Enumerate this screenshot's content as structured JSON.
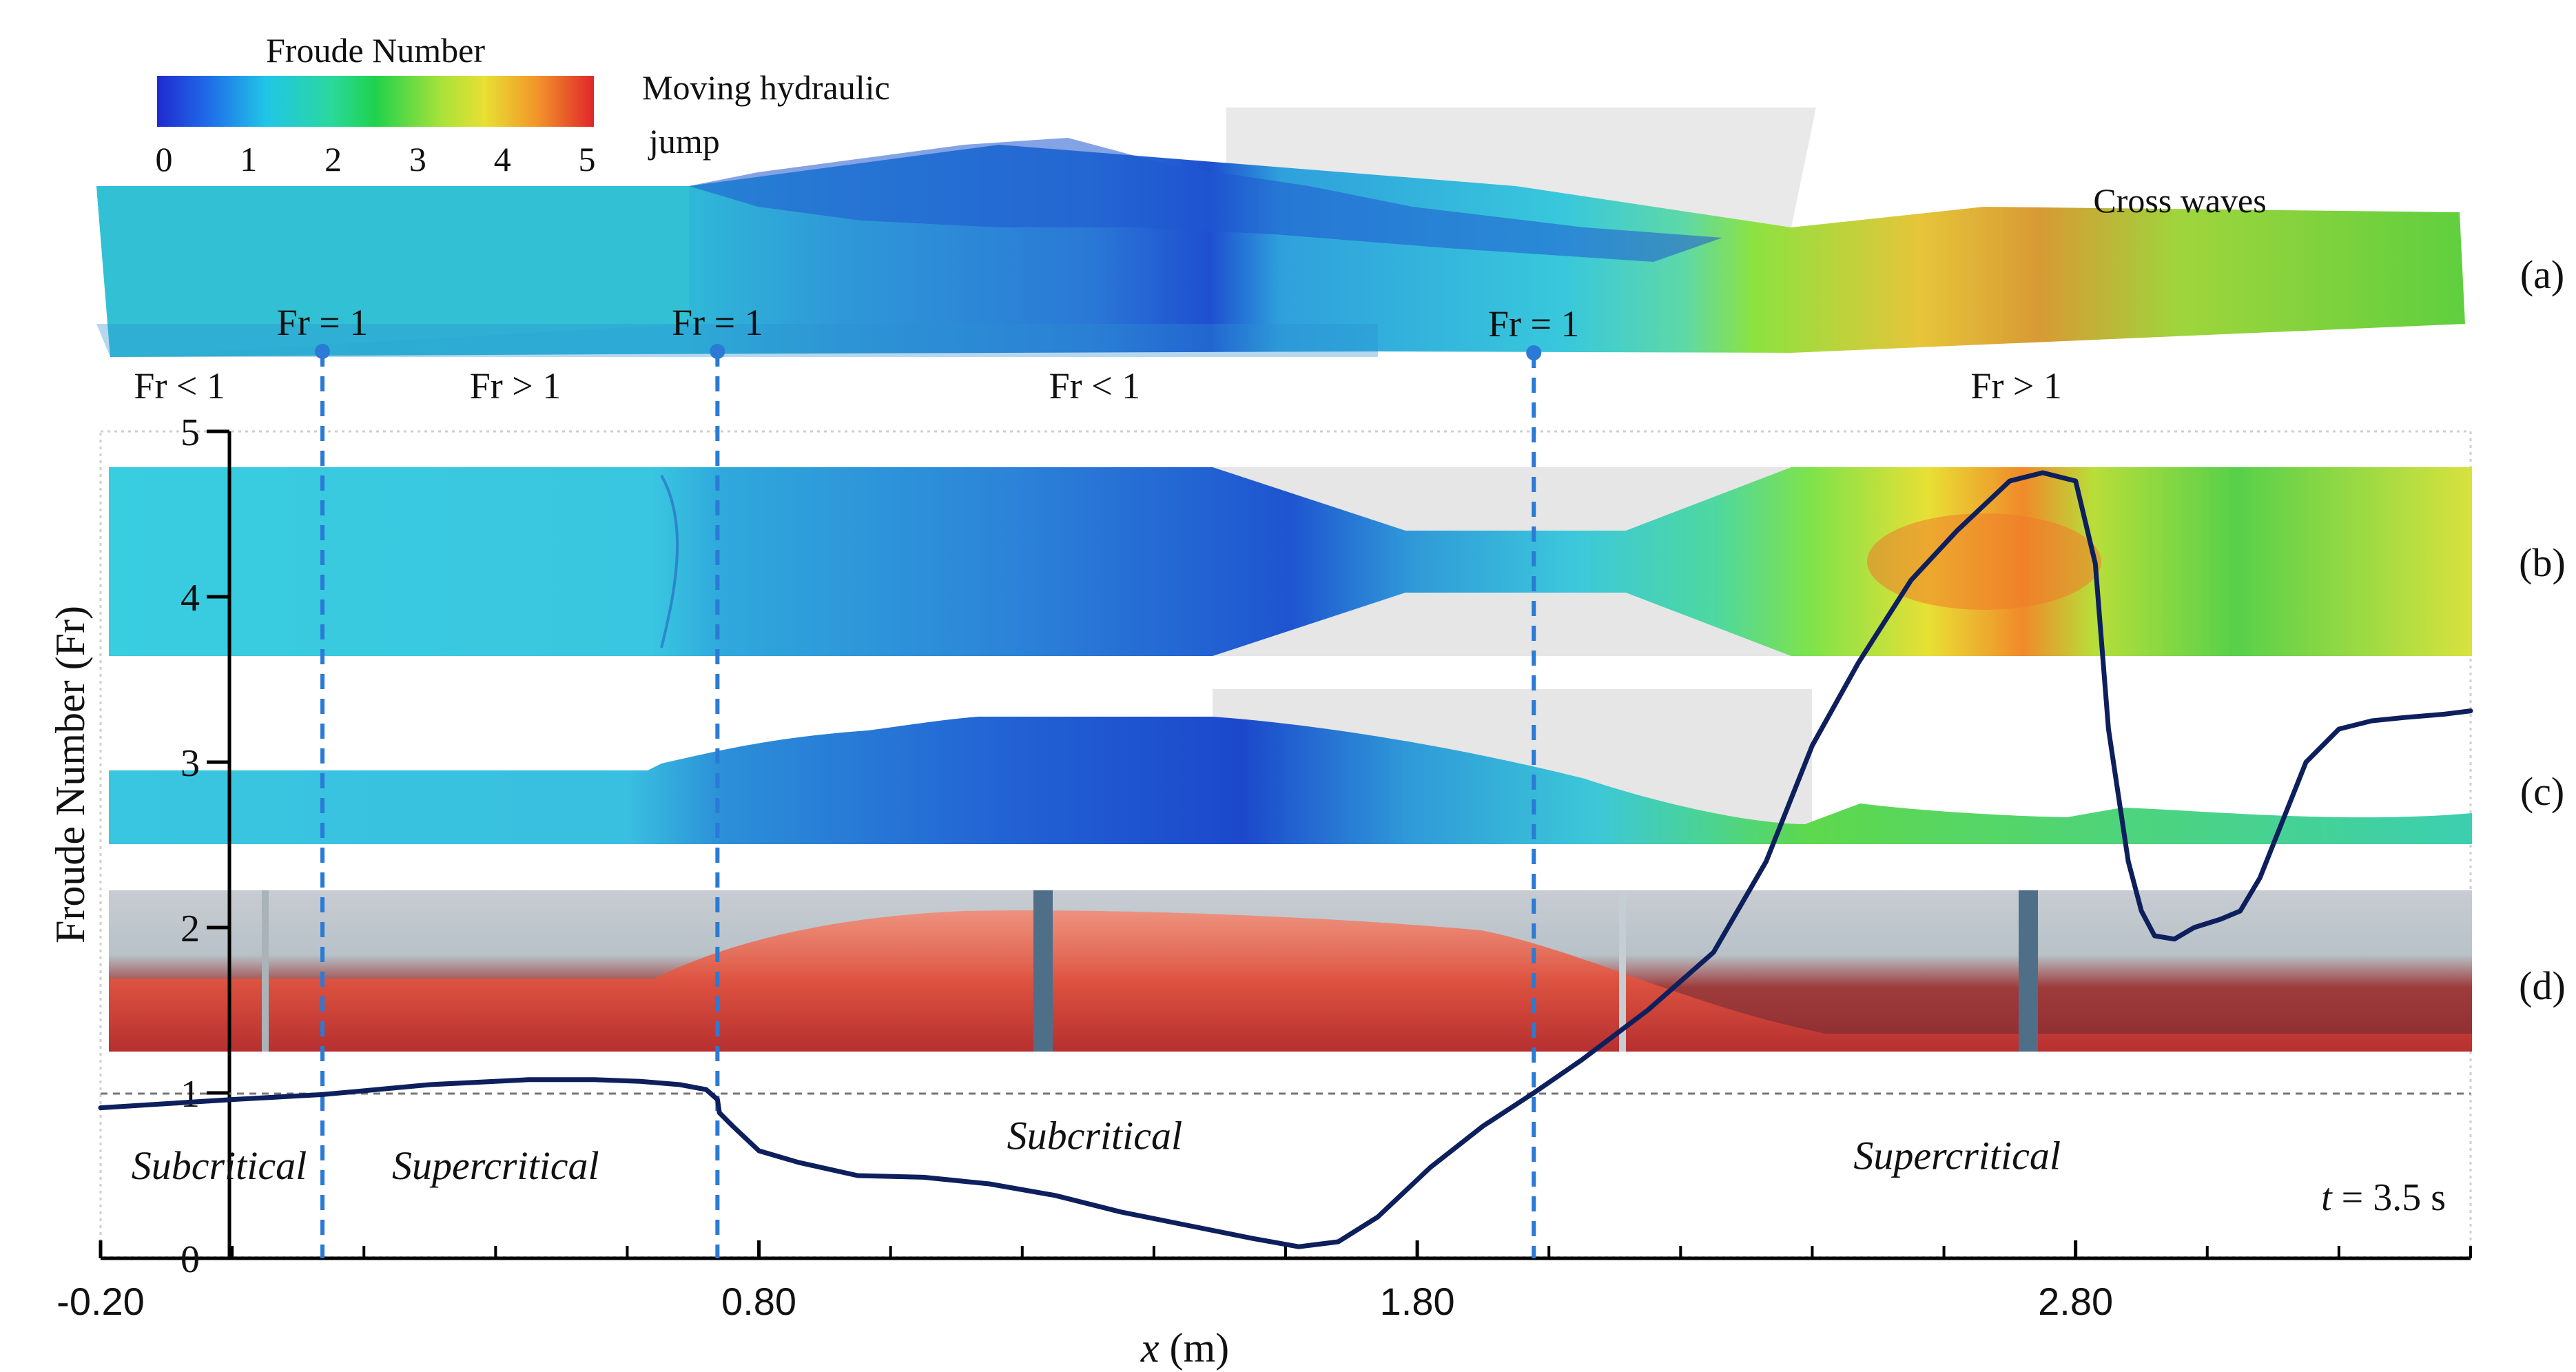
{
  "chart_data": {
    "type": "line",
    "colorbar": {
      "title": "Froude Number",
      "ticks": [
        "0",
        "1",
        "2",
        "3",
        "4",
        "5"
      ],
      "min": 0,
      "max": 5
    },
    "panel_labels": [
      "(a)",
      "(b)",
      "(c)",
      "(d)"
    ],
    "annotations": {
      "moving_jump": "Moving hydraulic jump",
      "moving_jump_line1": "Moving hydraulic",
      "moving_jump_line2": "jump",
      "cross_waves": "Cross waves",
      "time": "t = 3.5 s",
      "time_var": "t",
      "time_val": "= 3.5 s"
    },
    "fr_markers": [
      {
        "x": 0.137,
        "label": "Fr = 1"
      },
      {
        "x": 0.737,
        "label": "Fr = 1"
      },
      {
        "x": 1.977,
        "label": "Fr = 1"
      }
    ],
    "fr_regions": [
      {
        "x": -0.08,
        "label": "Fr < 1"
      },
      {
        "x": 0.43,
        "label": "Fr > 1"
      },
      {
        "x": 1.31,
        "label": "Fr < 1"
      },
      {
        "x": 2.71,
        "label": "Fr > 1"
      }
    ],
    "flow_regimes": [
      {
        "x": -0.02,
        "y": 0.48,
        "label": "Subcritical"
      },
      {
        "x": 0.4,
        "y": 0.48,
        "label": "Supercritical"
      },
      {
        "x": 1.31,
        "y": 0.66,
        "label": "Subcritical"
      },
      {
        "x": 2.62,
        "y": 0.54,
        "label": "Supercritical"
      }
    ],
    "xlabel": "x (m)",
    "xlabel_var": "x",
    "xlabel_unit": "(m)",
    "ylabel": "Froude Number (Fr)",
    "xlim": [
      -0.2,
      3.4
    ],
    "ylim": [
      0,
      5
    ],
    "xticks": [
      -0.2,
      0.8,
      1.8,
      2.8
    ],
    "xtick_labels": [
      "-0.20",
      "0.80",
      "1.80",
      "2.80"
    ],
    "yticks": [
      0,
      1,
      2,
      3,
      4,
      5
    ],
    "ytick_labels": [
      "0",
      "1",
      "2",
      "3",
      "4",
      "5"
    ],
    "reference_line": {
      "y": 1,
      "style": "dashed"
    },
    "series": [
      {
        "name": "Froude Number",
        "color": "#0d1f5c",
        "x": [
          -0.2,
          0.0,
          0.137,
          0.3,
          0.45,
          0.55,
          0.62,
          0.68,
          0.72,
          0.737,
          0.74,
          0.76,
          0.8,
          0.86,
          0.95,
          1.05,
          1.15,
          1.25,
          1.35,
          1.45,
          1.55,
          1.62,
          1.68,
          1.74,
          1.82,
          1.9,
          1.977,
          2.05,
          2.15,
          2.25,
          2.33,
          2.4,
          2.47,
          2.55,
          2.62,
          2.7,
          2.75,
          2.8,
          2.83,
          2.85,
          2.88,
          2.9,
          2.92,
          2.95,
          2.98,
          3.02,
          3.05,
          3.08,
          3.1,
          3.13,
          3.15,
          3.2,
          3.25,
          3.3,
          3.36,
          3.4
        ],
        "y": [
          0.91,
          0.96,
          0.99,
          1.05,
          1.08,
          1.08,
          1.07,
          1.05,
          1.02,
          0.96,
          0.88,
          0.8,
          0.65,
          0.58,
          0.5,
          0.49,
          0.45,
          0.38,
          0.28,
          0.2,
          0.12,
          0.07,
          0.1,
          0.25,
          0.55,
          0.8,
          1.0,
          1.2,
          1.5,
          1.85,
          2.4,
          3.1,
          3.6,
          4.1,
          4.4,
          4.7,
          4.75,
          4.7,
          4.2,
          3.2,
          2.4,
          2.1,
          1.95,
          1.93,
          2.0,
          2.05,
          2.1,
          2.3,
          2.5,
          2.8,
          3.0,
          3.2,
          3.25,
          3.27,
          3.29,
          3.31
        ]
      }
    ]
  }
}
